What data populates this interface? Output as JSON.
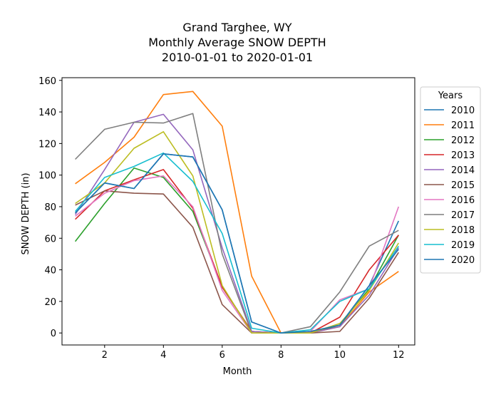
{
  "chart_data": {
    "type": "line",
    "title": [
      "Grand Targhee, WY",
      "Monthly Average SNOW DEPTH",
      "2010-01-01 to 2020-01-01"
    ],
    "xlabel": "Month",
    "ylabel": "SNOW DEPTH (in)",
    "xlim": [
      0.55,
      12.55
    ],
    "ylim": [
      -7.6,
      161.7
    ],
    "xticks": [
      2,
      4,
      6,
      8,
      10,
      12
    ],
    "yticks": [
      0,
      20,
      40,
      60,
      80,
      100,
      120,
      140,
      160
    ],
    "grid": false,
    "legend": {
      "title": "Years",
      "placement": "outside-right-top"
    },
    "x": [
      1,
      2,
      3,
      4,
      5,
      6,
      7,
      8,
      9,
      10,
      11,
      12
    ],
    "series": [
      {
        "name": "2010",
        "color": "#1f77b4",
        "values": [
          76,
          95,
          91.5,
          113.5,
          111.5,
          78,
          7,
          0,
          1,
          5,
          30,
          71
        ]
      },
      {
        "name": "2011",
        "color": "#ff7f0e",
        "values": [
          94.5,
          108,
          124,
          151,
          153,
          131,
          36,
          0,
          0,
          4,
          26,
          39
        ]
      },
      {
        "name": "2012",
        "color": "#2ca02c",
        "values": [
          58,
          82,
          104.5,
          98.5,
          77,
          29,
          1,
          0,
          0,
          5,
          28,
          62
        ]
      },
      {
        "name": "2013",
        "color": "#d62728",
        "values": [
          72,
          90,
          97,
          103.5,
          79,
          29,
          1,
          0,
          0,
          10,
          40,
          62
        ]
      },
      {
        "name": "2014",
        "color": "#9467bd",
        "values": [
          75,
          103.5,
          133.5,
          138.5,
          116,
          54,
          1,
          0,
          0,
          4,
          24,
          54
        ]
      },
      {
        "name": "2015",
        "color": "#8c564b",
        "values": [
          81,
          90,
          88.5,
          88,
          67,
          18,
          0,
          0,
          0,
          1,
          22,
          51
        ]
      },
      {
        "name": "2016",
        "color": "#e377c2",
        "values": [
          74,
          88.5,
          96.5,
          99.5,
          80,
          27,
          0,
          0,
          1,
          21,
          28,
          80
        ]
      },
      {
        "name": "2017",
        "color": "#7f7f7f",
        "values": [
          110,
          129,
          133.5,
          133,
          139,
          50,
          0,
          0,
          4,
          26,
          55,
          65
        ]
      },
      {
        "name": "2018",
        "color": "#bcbd22",
        "values": [
          82,
          95,
          117,
          127.5,
          99.5,
          30,
          0,
          0,
          0,
          6,
          27,
          57
        ]
      },
      {
        "name": "2019",
        "color": "#17becf",
        "values": [
          77,
          98.5,
          105.5,
          114,
          96,
          63,
          3,
          0,
          2,
          20,
          28,
          55
        ]
      },
      {
        "name": "2020",
        "color": "#1f77b4",
        "values": [
          76,
          95,
          91.5,
          113.5,
          111.5,
          78,
          7,
          0,
          1,
          5,
          30,
          53
        ]
      }
    ]
  }
}
